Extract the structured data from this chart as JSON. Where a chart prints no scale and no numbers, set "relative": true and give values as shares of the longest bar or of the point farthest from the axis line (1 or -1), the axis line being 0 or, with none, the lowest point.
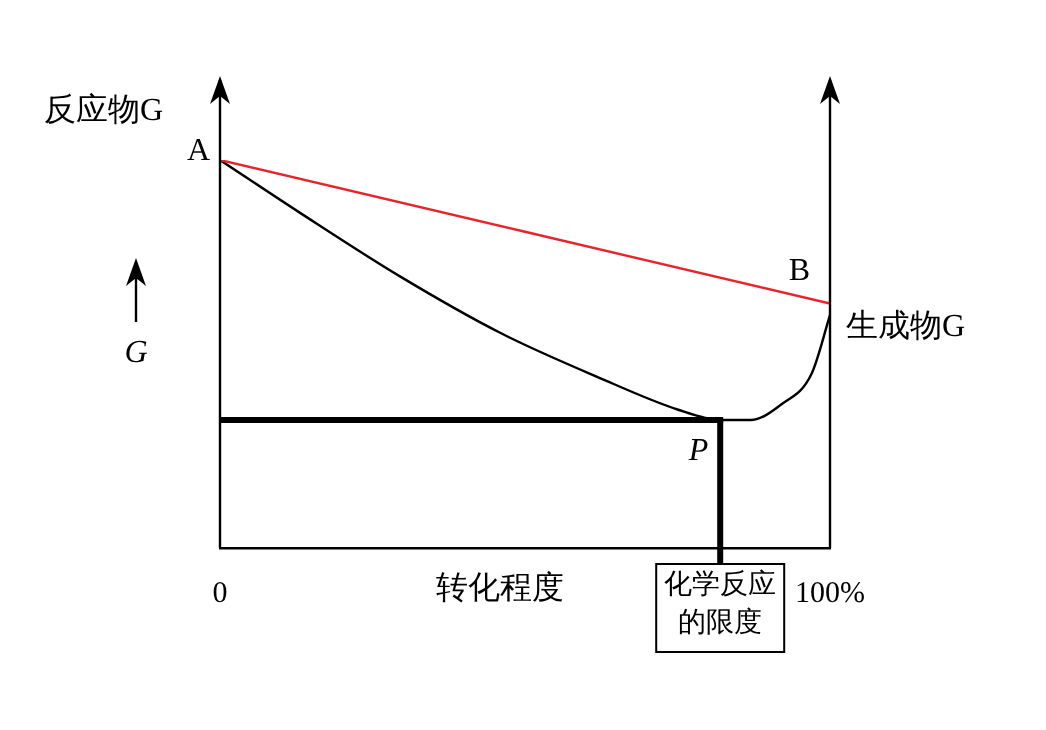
{
  "chart_data": {
    "type": "line",
    "relative": true,
    "xlabel": "转化程度",
    "ylabel": "反应物G",
    "y2label": "生成物G",
    "xlim": [
      0,
      100
    ],
    "xticks": [
      {
        "value": 0,
        "label": "0"
      },
      {
        "value": 100,
        "label": "100%"
      }
    ],
    "legend": false,
    "marker": "none",
    "line_style": "solid",
    "series": [
      {
        "color": "#e8242b",
        "x": [
          0,
          100
        ],
        "values": [
          1,
          0.63
        ]
      },
      {
        "color": "#000000",
        "x": [
          0,
          13,
          29.5,
          46,
          62,
          75,
          82,
          87,
          92,
          97,
          100
        ],
        "values": [
          1,
          0.865,
          0.7,
          0.554,
          0.44,
          0.357,
          0.33,
          0.33,
          0.37,
          0.45,
          0.6
        ]
      }
    ],
    "ref_lines": [
      {
        "axis": "y",
        "value": 0.33,
        "label": null,
        "color": "#000000"
      },
      {
        "axis": "x",
        "value": 82,
        "label": "化学反应的限度",
        "color": "#000000"
      }
    ],
    "annotations": [
      {
        "text": "A",
        "x": 0,
        "y": 1
      },
      {
        "text": "B",
        "x": 100,
        "y": 0.63
      },
      {
        "text": "P",
        "x": 82,
        "y": 0.33
      },
      "G"
    ]
  }
}
